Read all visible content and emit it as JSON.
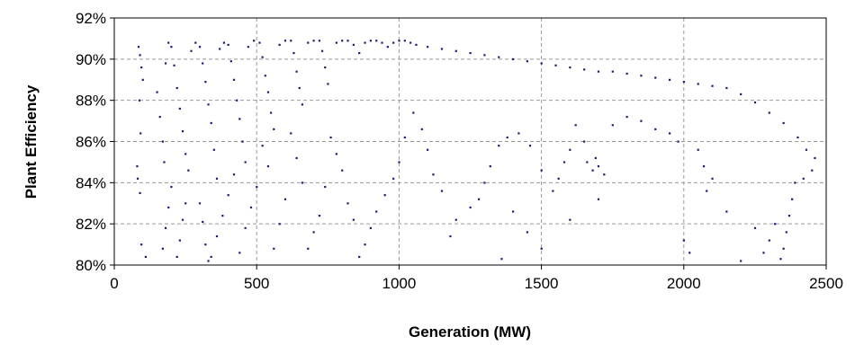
{
  "chart_data": {
    "type": "scatter",
    "xlabel": "Generation (MW)",
    "ylabel": "Plant Efficiency",
    "xlim": [
      0,
      2500
    ],
    "ylim": [
      80,
      92
    ],
    "x_ticks": [
      0,
      500,
      1000,
      1500,
      2000,
      2500
    ],
    "x_tick_labels": [
      "0",
      "500",
      "1000",
      "1500",
      "2000",
      "2500"
    ],
    "y_ticks": [
      80,
      82,
      84,
      86,
      88,
      90,
      92
    ],
    "y_tick_labels": [
      "80%",
      "82%",
      "84%",
      "86%",
      "88%",
      "90%",
      "92%"
    ],
    "grid": "dashed",
    "marker_color": "#1a1a80",
    "series": [
      {
        "points": [
          [
            85,
            90.6
          ],
          [
            90,
            90.2
          ],
          [
            95,
            89.6
          ],
          [
            100,
            89.0
          ],
          [
            88,
            88.0
          ],
          [
            92,
            86.4
          ],
          [
            80,
            84.8
          ],
          [
            82,
            84.2
          ],
          [
            90,
            83.5
          ],
          [
            95,
            81.0
          ],
          [
            110,
            80.4
          ],
          [
            150,
            88.4
          ],
          [
            160,
            87.2
          ],
          [
            170,
            86.0
          ],
          [
            175,
            85.0
          ],
          [
            180,
            89.8
          ],
          [
            190,
            90.8
          ],
          [
            200,
            90.6
          ],
          [
            210,
            89.7
          ],
          [
            220,
            88.6
          ],
          [
            230,
            87.6
          ],
          [
            240,
            86.5
          ],
          [
            250,
            85.4
          ],
          [
            260,
            84.6
          ],
          [
            270,
            90.4
          ],
          [
            285,
            90.8
          ],
          [
            300,
            90.6
          ],
          [
            310,
            89.8
          ],
          [
            320,
            88.9
          ],
          [
            330,
            87.8
          ],
          [
            340,
            86.9
          ],
          [
            350,
            85.6
          ],
          [
            360,
            84.2
          ],
          [
            300,
            83.0
          ],
          [
            310,
            82.1
          ],
          [
            320,
            81.0
          ],
          [
            330,
            80.2
          ],
          [
            370,
            90.5
          ],
          [
            385,
            90.8
          ],
          [
            400,
            90.7
          ],
          [
            410,
            89.9
          ],
          [
            420,
            89.0
          ],
          [
            430,
            88.0
          ],
          [
            440,
            87.1
          ],
          [
            450,
            86.0
          ],
          [
            460,
            85.0
          ],
          [
            470,
            90.6
          ],
          [
            490,
            90.9
          ],
          [
            510,
            90.8
          ],
          [
            520,
            90.1
          ],
          [
            530,
            89.2
          ],
          [
            540,
            88.4
          ],
          [
            550,
            87.4
          ],
          [
            560,
            86.6
          ],
          [
            580,
            90.7
          ],
          [
            600,
            90.9
          ],
          [
            620,
            90.9
          ],
          [
            630,
            90.3
          ],
          [
            640,
            89.4
          ],
          [
            650,
            88.6
          ],
          [
            660,
            87.8
          ],
          [
            680,
            90.8
          ],
          [
            700,
            90.9
          ],
          [
            720,
            90.9
          ],
          [
            730,
            90.4
          ],
          [
            740,
            89.6
          ],
          [
            750,
            88.8
          ],
          [
            780,
            90.8
          ],
          [
            800,
            90.9
          ],
          [
            820,
            90.9
          ],
          [
            840,
            90.7
          ],
          [
            860,
            90.3
          ],
          [
            880,
            90.8
          ],
          [
            900,
            90.9
          ],
          [
            920,
            90.9
          ],
          [
            940,
            90.8
          ],
          [
            960,
            90.6
          ],
          [
            980,
            90.8
          ],
          [
            1000,
            90.9
          ],
          [
            1020,
            90.9
          ],
          [
            1040,
            90.8
          ],
          [
            1060,
            90.7
          ],
          [
            1100,
            90.6
          ],
          [
            1150,
            90.5
          ],
          [
            1200,
            90.4
          ],
          [
            1250,
            90.3
          ],
          [
            1300,
            90.2
          ],
          [
            1350,
            90.1
          ],
          [
            1400,
            90.0
          ],
          [
            1450,
            89.9
          ],
          [
            1500,
            89.8
          ],
          [
            1550,
            89.7
          ],
          [
            1600,
            89.6
          ],
          [
            1650,
            89.5
          ],
          [
            1700,
            89.4
          ],
          [
            1750,
            89.4
          ],
          [
            1800,
            89.3
          ],
          [
            1850,
            89.2
          ],
          [
            1900,
            89.1
          ],
          [
            1950,
            89.0
          ],
          [
            2000,
            88.9
          ],
          [
            2050,
            88.8
          ],
          [
            2100,
            88.7
          ],
          [
            2150,
            88.6
          ],
          [
            2200,
            88.3
          ],
          [
            2250,
            87.9
          ],
          [
            2300,
            87.4
          ],
          [
            2350,
            86.9
          ],
          [
            2400,
            86.2
          ],
          [
            2430,
            85.6
          ],
          [
            2460,
            85.2
          ],
          [
            2450,
            84.6
          ],
          [
            2420,
            84.2
          ],
          [
            2390,
            84.0
          ],
          [
            2380,
            83.2
          ],
          [
            2370,
            82.4
          ],
          [
            2360,
            81.6
          ],
          [
            2350,
            80.8
          ],
          [
            2340,
            80.3
          ],
          [
            2320,
            82.0
          ],
          [
            2300,
            81.2
          ],
          [
            2280,
            80.6
          ],
          [
            2250,
            81.8
          ],
          [
            2200,
            80.2
          ],
          [
            2150,
            82.6
          ],
          [
            2100,
            84.2
          ],
          [
            2080,
            83.6
          ],
          [
            2070,
            84.8
          ],
          [
            2050,
            85.6
          ],
          [
            2020,
            80.6
          ],
          [
            2000,
            81.2
          ],
          [
            1980,
            86.0
          ],
          [
            1950,
            86.4
          ],
          [
            1900,
            86.6
          ],
          [
            1850,
            87.0
          ],
          [
            1800,
            87.2
          ],
          [
            1750,
            86.8
          ],
          [
            1720,
            84.4
          ],
          [
            1700,
            84.8
          ],
          [
            1690,
            85.2
          ],
          [
            1680,
            84.6
          ],
          [
            1660,
            85.0
          ],
          [
            1650,
            86.0
          ],
          [
            1620,
            86.8
          ],
          [
            1600,
            85.6
          ],
          [
            1580,
            85.0
          ],
          [
            1560,
            84.2
          ],
          [
            1540,
            83.6
          ],
          [
            1500,
            84.6
          ],
          [
            1460,
            85.8
          ],
          [
            1420,
            86.4
          ],
          [
            1380,
            86.2
          ],
          [
            1350,
            85.8
          ],
          [
            1320,
            84.8
          ],
          [
            1300,
            84.0
          ],
          [
            1280,
            83.2
          ],
          [
            1250,
            82.8
          ],
          [
            1200,
            82.2
          ],
          [
            1180,
            81.4
          ],
          [
            1150,
            83.6
          ],
          [
            1120,
            84.4
          ],
          [
            1100,
            85.6
          ],
          [
            1080,
            86.6
          ],
          [
            1050,
            87.4
          ],
          [
            1020,
            86.2
          ],
          [
            1000,
            85.0
          ],
          [
            980,
            84.2
          ],
          [
            950,
            83.4
          ],
          [
            920,
            82.6
          ],
          [
            900,
            81.8
          ],
          [
            880,
            81.0
          ],
          [
            860,
            80.4
          ],
          [
            840,
            82.2
          ],
          [
            820,
            83.0
          ],
          [
            800,
            84.6
          ],
          [
            780,
            85.4
          ],
          [
            760,
            86.2
          ],
          [
            740,
            83.8
          ],
          [
            720,
            82.4
          ],
          [
            700,
            81.6
          ],
          [
            680,
            80.8
          ],
          [
            660,
            84.0
          ],
          [
            640,
            85.2
          ],
          [
            620,
            86.4
          ],
          [
            600,
            83.2
          ],
          [
            580,
            82.0
          ],
          [
            560,
            80.8
          ],
          [
            540,
            84.8
          ],
          [
            520,
            85.8
          ],
          [
            500,
            83.8
          ],
          [
            480,
            82.8
          ],
          [
            460,
            81.8
          ],
          [
            440,
            80.6
          ],
          [
            420,
            84.4
          ],
          [
            400,
            83.4
          ],
          [
            380,
            82.4
          ],
          [
            360,
            81.4
          ],
          [
            340,
            80.4
          ],
          [
            250,
            83.0
          ],
          [
            240,
            82.2
          ],
          [
            230,
            81.2
          ],
          [
            220,
            80.4
          ],
          [
            200,
            83.8
          ],
          [
            190,
            82.8
          ],
          [
            180,
            81.8
          ],
          [
            170,
            80.8
          ],
          [
            1360,
            80.3
          ],
          [
            1500,
            80.8
          ],
          [
            1450,
            81.6
          ],
          [
            1400,
            82.6
          ],
          [
            1600,
            82.2
          ],
          [
            1700,
            83.2
          ]
        ]
      }
    ]
  }
}
